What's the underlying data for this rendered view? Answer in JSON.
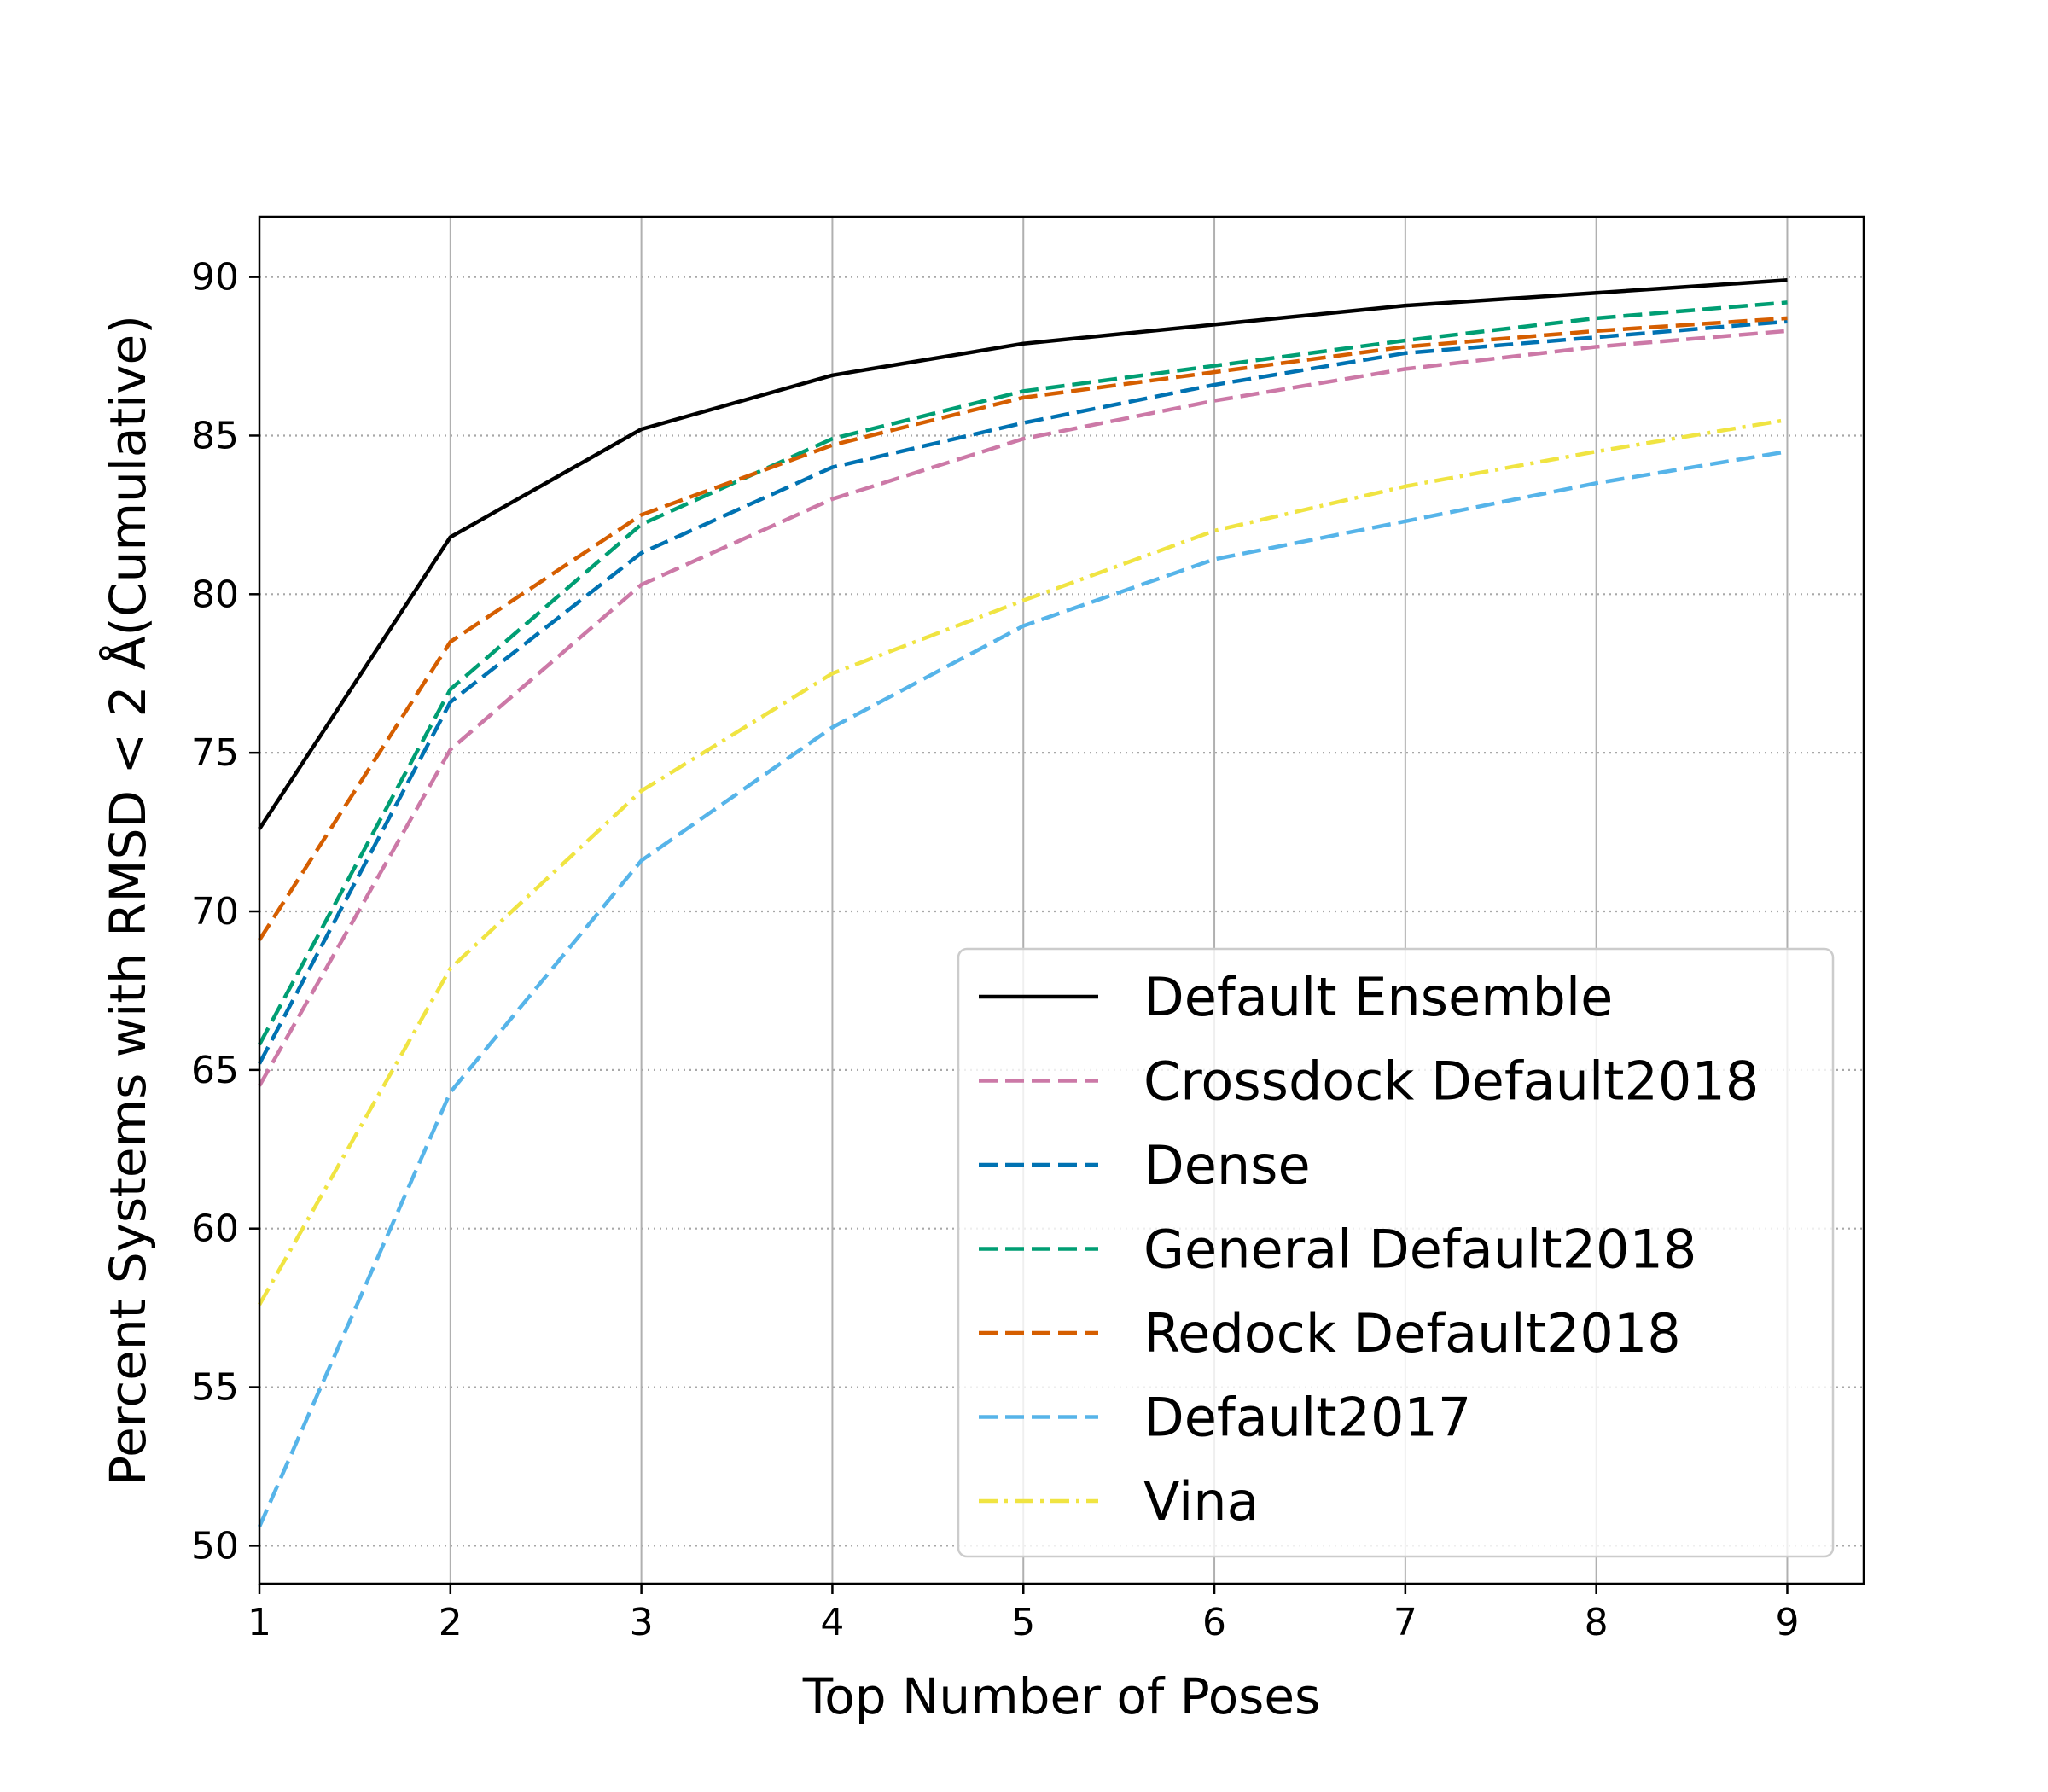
{
  "chart_data": {
    "type": "line",
    "xlabel": "Top Number of Poses",
    "ylabel": "Percent Systems with RMSD < 2 Å(Cumulative)",
    "xlim": [
      1,
      9.4
    ],
    "ylim": [
      48.8,
      91.9
    ],
    "x": [
      1,
      2,
      3,
      4,
      5,
      6,
      7,
      8,
      9
    ],
    "xticks": [
      "1",
      "2",
      "3",
      "4",
      "5",
      "6",
      "7",
      "8",
      "9"
    ],
    "yticks": [
      "50",
      "55",
      "60",
      "65",
      "70",
      "75",
      "80",
      "85",
      "90"
    ],
    "yticks_values": [
      50,
      55,
      60,
      65,
      70,
      75,
      80,
      85,
      90
    ],
    "grid": "x solid, y dotted",
    "legend_position": "lower-right",
    "series": [
      {
        "name": "Default Ensemble",
        "color": "#000000",
        "style": "solid",
        "values": [
          72.6,
          81.8,
          85.2,
          86.9,
          87.9,
          88.5,
          89.1,
          89.5,
          89.9
        ]
      },
      {
        "name": "Crossdock Default2018",
        "color": "#cc79a7",
        "style": "dashed",
        "values": [
          64.5,
          75.1,
          80.3,
          83.0,
          84.9,
          86.1,
          87.1,
          87.8,
          88.3
        ]
      },
      {
        "name": "Dense",
        "color": "#0072b2",
        "style": "dashed",
        "values": [
          65.2,
          76.6,
          81.3,
          84.0,
          85.4,
          86.6,
          87.6,
          88.1,
          88.6
        ]
      },
      {
        "name": "General Default2018",
        "color": "#009e73",
        "style": "dashed",
        "values": [
          65.8,
          77.0,
          82.2,
          84.9,
          86.4,
          87.2,
          88.0,
          88.7,
          89.2
        ]
      },
      {
        "name": "Redock Default2018",
        "color": "#d55e00",
        "style": "dashed",
        "values": [
          69.1,
          78.5,
          82.5,
          84.7,
          86.2,
          87.0,
          87.8,
          88.3,
          88.7
        ]
      },
      {
        "name": "Default2017",
        "color": "#56b4e9",
        "style": "dashed",
        "values": [
          50.6,
          64.3,
          71.6,
          75.8,
          79.0,
          81.1,
          82.3,
          83.5,
          84.5
        ]
      },
      {
        "name": "Vina",
        "color": "#f0e442",
        "style": "dashdot",
        "values": [
          57.6,
          68.2,
          73.8,
          77.5,
          79.8,
          82.0,
          83.4,
          84.5,
          85.5
        ]
      }
    ]
  }
}
